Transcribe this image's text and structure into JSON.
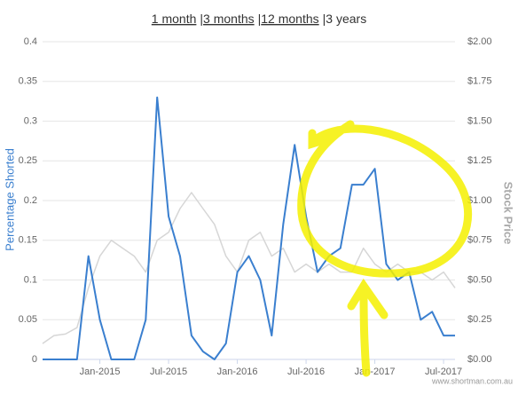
{
  "range_selector": {
    "options": [
      "1 month",
      "3 months",
      "12 months",
      "3 years"
    ],
    "separator": "|"
  },
  "credit": "www.shortman.com.au",
  "chart_data": {
    "type": "line",
    "y_label": "Percentage Shorted",
    "y2_label": "Stock Price",
    "x": [
      "2014-08",
      "2014-09",
      "2014-10",
      "2014-11",
      "2014-12",
      "2015-01",
      "2015-02",
      "2015-03",
      "2015-04",
      "2015-05",
      "2015-06",
      "2015-07",
      "2015-08",
      "2015-09",
      "2015-10",
      "2015-11",
      "2015-12",
      "2016-01",
      "2016-02",
      "2016-03",
      "2016-04",
      "2016-05",
      "2016-06",
      "2016-07",
      "2016-08",
      "2016-09",
      "2016-10",
      "2016-11",
      "2016-12",
      "2017-01",
      "2017-02",
      "2017-03",
      "2017-04",
      "2017-05",
      "2017-06",
      "2017-07",
      "2017-08"
    ],
    "xlim": [
      "2014-08",
      "2017-08"
    ],
    "xticks": [
      {
        "value": "2015-01",
        "label": "Jan-2015"
      },
      {
        "value": "2015-07",
        "label": "Jul-2015"
      },
      {
        "value": "2016-01",
        "label": "Jan-2016"
      },
      {
        "value": "2016-07",
        "label": "Jul-2016"
      },
      {
        "value": "2017-01",
        "label": "Jan-2017"
      },
      {
        "value": "2017-07",
        "label": "Jul-2017"
      }
    ],
    "ylim": [
      0,
      0.4
    ],
    "yticks": [
      0,
      0.05,
      0.1,
      0.15,
      0.2,
      0.25,
      0.3,
      0.35,
      0.4
    ],
    "y2lim": [
      0,
      2
    ],
    "y2ticks": [
      {
        "value": 0,
        "label": "$0.00"
      },
      {
        "value": 0.25,
        "label": "$0.25"
      },
      {
        "value": 0.5,
        "label": "$0.50"
      },
      {
        "value": 0.75,
        "label": "$0.75"
      },
      {
        "value": 1,
        "label": "$1.00"
      },
      {
        "value": 1.25,
        "label": "$1.25"
      },
      {
        "value": 1.5,
        "label": "$1.50"
      },
      {
        "value": 1.75,
        "label": "$1.75"
      },
      {
        "value": 2,
        "label": "$2.00"
      }
    ],
    "grid": true,
    "series": [
      {
        "name": "Stock Price",
        "color": "#d6d6d6",
        "axis": "y2",
        "values": [
          0.1,
          0.15,
          0.16,
          0.2,
          0.45,
          0.65,
          0.75,
          0.7,
          0.65,
          0.55,
          0.75,
          0.8,
          0.95,
          1.05,
          0.95,
          0.85,
          0.65,
          0.55,
          0.75,
          0.8,
          0.65,
          0.7,
          0.55,
          0.6,
          0.55,
          0.6,
          0.55,
          0.55,
          0.7,
          0.6,
          0.55,
          0.6,
          0.55,
          0.55,
          0.5,
          0.55,
          0.45
        ]
      },
      {
        "name": "Percentage Shorted",
        "color": "#3a7fcf",
        "values": [
          0,
          0,
          0,
          0,
          0.13,
          0.05,
          0,
          0,
          0,
          0.05,
          0.33,
          0.18,
          0.13,
          0.03,
          0.01,
          0,
          0.02,
          0.11,
          0.13,
          0.1,
          0.03,
          0.17,
          0.27,
          0.18,
          0.11,
          0.13,
          0.14,
          0.22,
          0.22,
          0.24,
          0.12,
          0.1,
          0.11,
          0.05,
          0.06,
          0.03,
          0.03
        ]
      }
    ]
  }
}
